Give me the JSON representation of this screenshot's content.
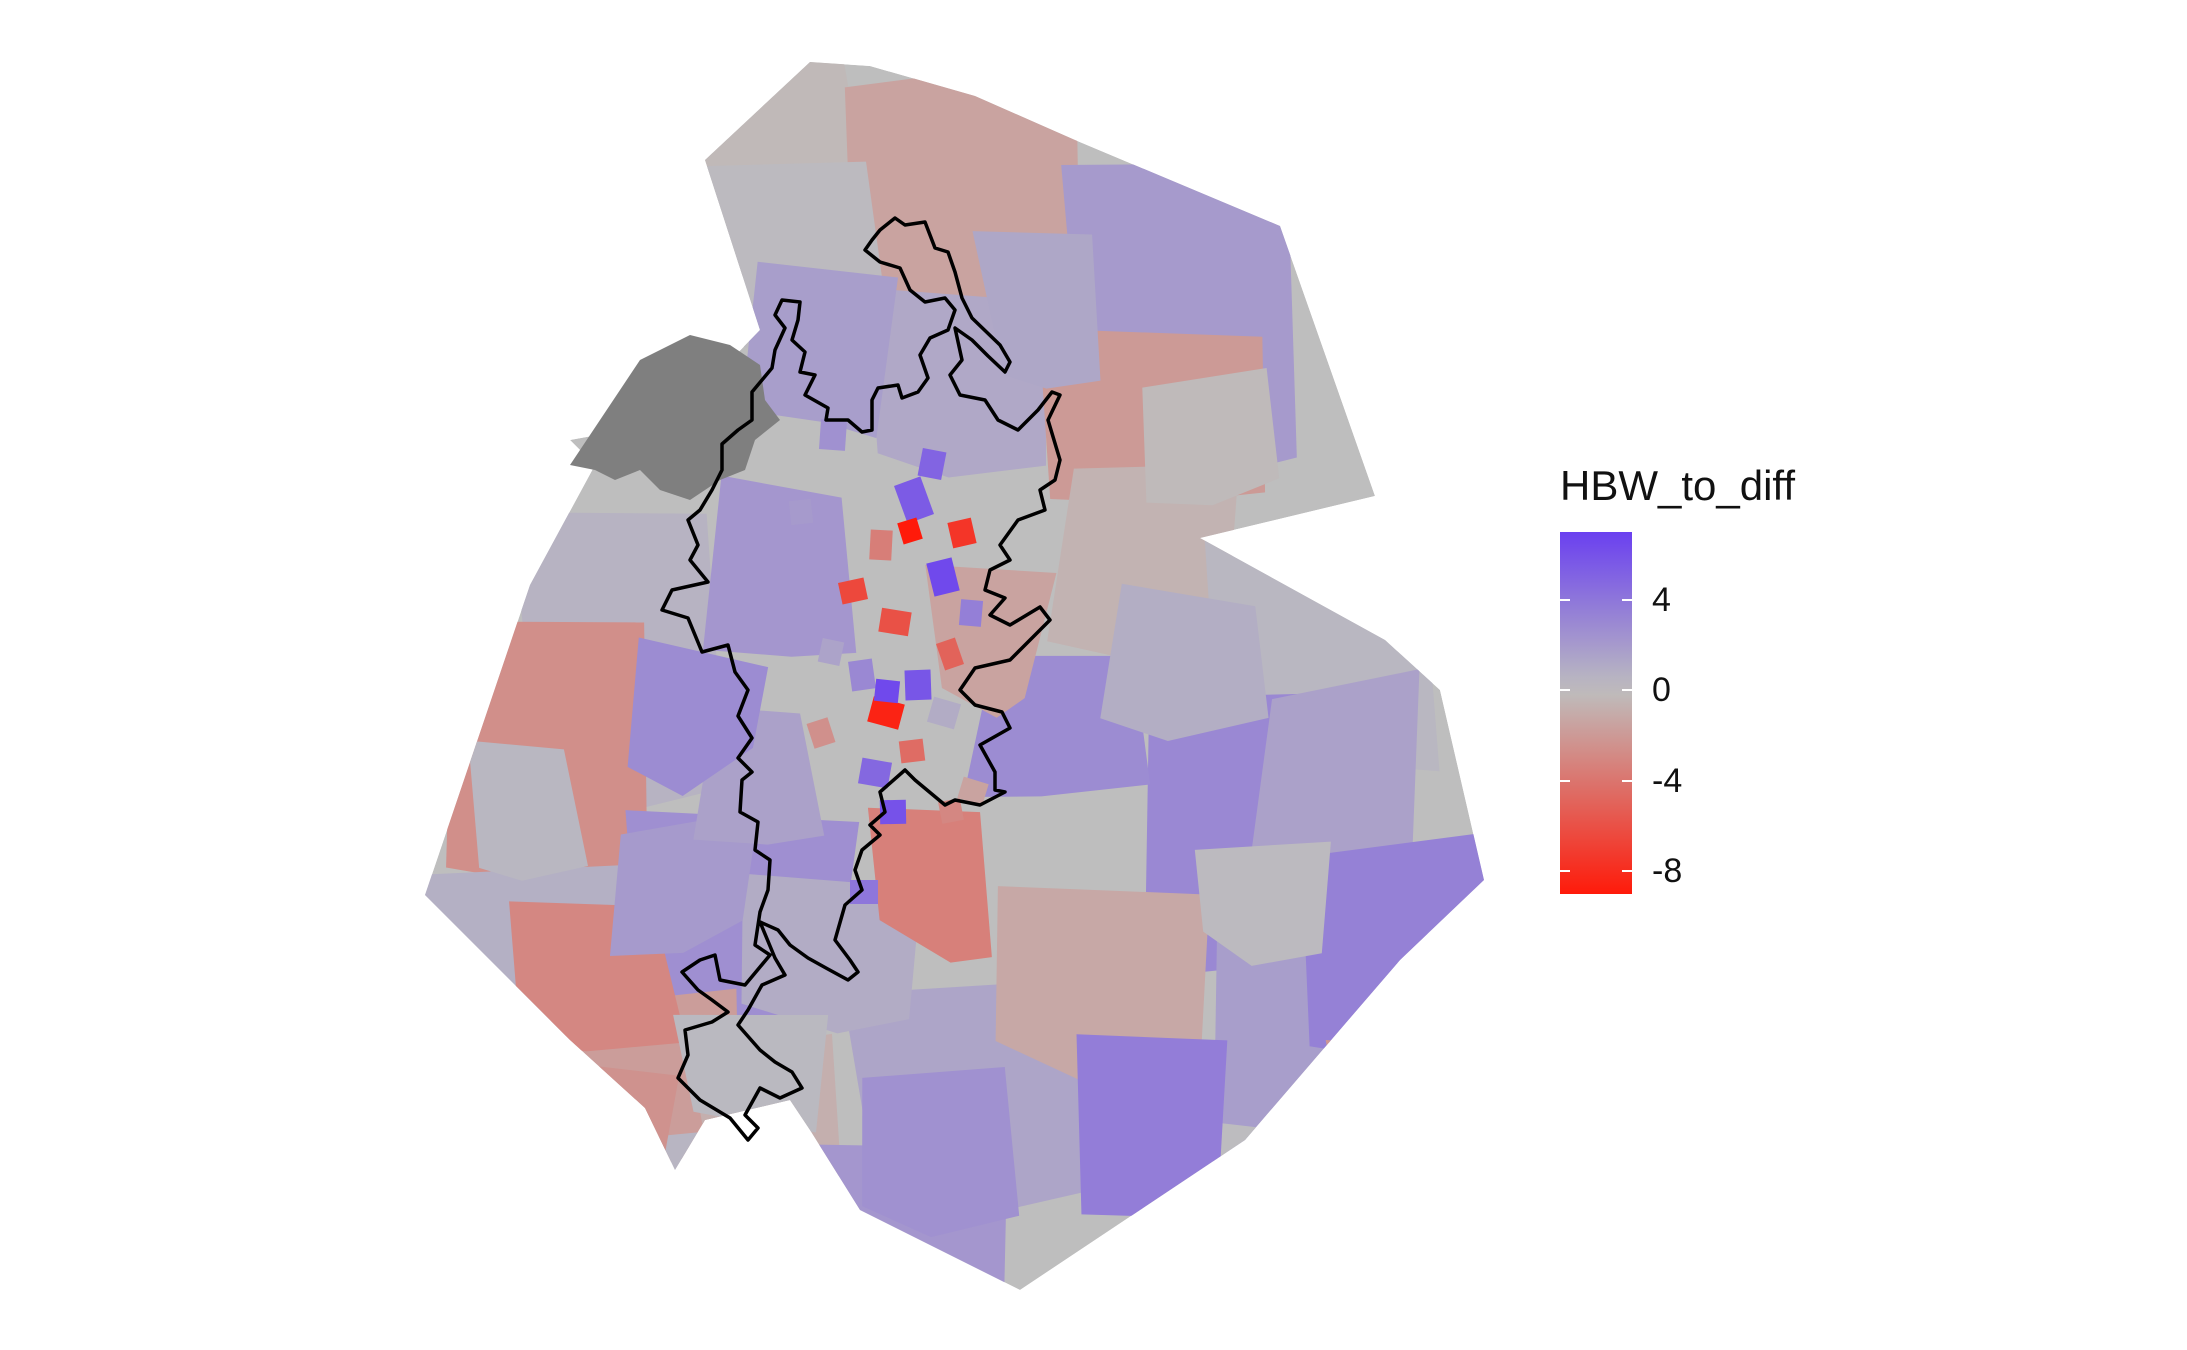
{
  "legend": {
    "title": "HBW_to_diff",
    "min": -9,
    "max": 7,
    "ticks": [
      {
        "value": 4,
        "label": "4"
      },
      {
        "value": 0,
        "label": "0"
      },
      {
        "value": -4,
        "label": "-4"
      },
      {
        "value": -8,
        "label": "-8"
      }
    ],
    "color_low": "#FF1A0A",
    "color_mid": "#BEBEBE",
    "color_high": "#6A40F0",
    "na_color": "#7F7F7F"
  },
  "map": {
    "background": "#FFFFFF",
    "boundary_color": "#000000",
    "zone_values": [
      -0.3,
      -1.5,
      2.0,
      0.2,
      1.2,
      -2.0,
      0.6,
      2.2,
      -0.6,
      0.4,
      3.0,
      -2.6,
      0.8,
      2.6,
      1.4,
      -1.2,
      1.8,
      0.1,
      -1.8,
      -0.8,
      2.2,
      0.5,
      1.6,
      2.8,
      3.4,
      -3.0,
      1.0,
      0.3,
      -3.4,
      3.6,
      1.8,
      -1.5,
      2.0,
      0.9,
      -2.4,
      1.3,
      -0.2,
      2.5,
      0.4,
      -2.2,
      1.6,
      0.2,
      2.8
    ],
    "urban_values": [
      5.5,
      -3.5,
      6.5,
      -6.0,
      3.0,
      -8.5,
      5.8,
      -5.0,
      2.5,
      -7.5,
      4.8,
      -4.5,
      1.0,
      6.0,
      -2.5,
      3.5,
      -6.5,
      5.0,
      2.0,
      -1.5,
      4.0,
      -9.0,
      6.5,
      -3.0,
      1.5
    ]
  }
}
